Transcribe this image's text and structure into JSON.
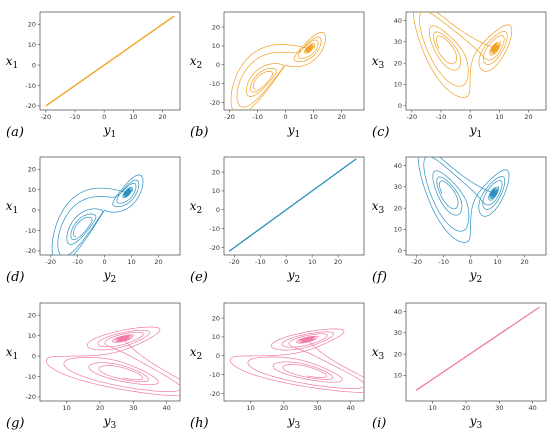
{
  "chart_data": [
    {
      "id": "a",
      "type": "line",
      "panel_label": "(a)",
      "xlabel": "y1",
      "ylabel": "x1",
      "color": "#f0a020",
      "xlim": [
        -22,
        26
      ],
      "ylim": [
        -22,
        26
      ],
      "xticks": [
        -20,
        -10,
        0,
        10,
        20
      ],
      "yticks": [
        -20,
        -10,
        0,
        10,
        20
      ],
      "pattern": "diagonal",
      "x": [
        -20,
        24
      ],
      "y": [
        -20,
        24
      ]
    },
    {
      "id": "b",
      "type": "line",
      "panel_label": "(b)",
      "xlabel": "y1",
      "ylabel": "x2",
      "color": "#f0a020",
      "xlim": [
        -22,
        28
      ],
      "ylim": [
        -24,
        28
      ],
      "xticks": [
        -20,
        -10,
        0,
        10,
        20
      ],
      "yticks": [
        -20,
        -10,
        0,
        10,
        20
      ],
      "pattern": "butterfly-diagonal"
    },
    {
      "id": "c",
      "type": "line",
      "panel_label": "(c)",
      "xlabel": "y1",
      "ylabel": "x3",
      "color": "#f0a020",
      "xlim": [
        -22,
        26
      ],
      "ylim": [
        -2,
        44
      ],
      "xticks": [
        -20,
        -10,
        0,
        10,
        20
      ],
      "yticks": [
        0,
        10,
        20,
        30,
        40
      ],
      "pattern": "butterfly"
    },
    {
      "id": "d",
      "type": "line",
      "panel_label": "(d)",
      "xlabel": "y2",
      "ylabel": "x1",
      "color": "#2a90c0",
      "xlim": [
        -24,
        28
      ],
      "ylim": [
        -22,
        26
      ],
      "xticks": [
        -20,
        -10,
        0,
        10,
        20
      ],
      "yticks": [
        -20,
        -10,
        0,
        10,
        20
      ],
      "pattern": "butterfly-diagonal"
    },
    {
      "id": "e",
      "type": "line",
      "panel_label": "(e)",
      "xlabel": "y2",
      "ylabel": "x2",
      "color": "#2a90c0",
      "xlim": [
        -24,
        30
      ],
      "ylim": [
        -24,
        28
      ],
      "xticks": [
        -20,
        -10,
        0,
        10,
        20
      ],
      "yticks": [
        -20,
        -10,
        0,
        10,
        20
      ],
      "pattern": "diagonal",
      "x": [
        -22,
        27
      ],
      "y": [
        -22,
        27
      ]
    },
    {
      "id": "f",
      "type": "line",
      "panel_label": "(f)",
      "xlabel": "y2",
      "ylabel": "x3",
      "color": "#2a90c0",
      "xlim": [
        -24,
        28
      ],
      "ylim": [
        -2,
        44
      ],
      "xticks": [
        -20,
        -10,
        0,
        10,
        20
      ],
      "yticks": [
        0,
        10,
        20,
        30,
        40
      ],
      "pattern": "butterfly"
    },
    {
      "id": "g",
      "type": "line",
      "panel_label": "(g)",
      "xlabel": "y3",
      "ylabel": "x1",
      "color": "#f07aa8",
      "xlim": [
        2,
        44
      ],
      "ylim": [
        -22,
        26
      ],
      "xticks": [
        10,
        20,
        30,
        40
      ],
      "yticks": [
        -20,
        -10,
        0,
        10,
        20
      ],
      "pattern": "butterfly-side"
    },
    {
      "id": "h",
      "type": "line",
      "panel_label": "(h)",
      "xlabel": "y3",
      "ylabel": "x2",
      "color": "#f07aa8",
      "xlim": [
        2,
        44
      ],
      "ylim": [
        -24,
        28
      ],
      "xticks": [
        10,
        20,
        30,
        40
      ],
      "yticks": [
        -20,
        -10,
        0,
        10,
        20
      ],
      "pattern": "butterfly-side"
    },
    {
      "id": "i",
      "type": "line",
      "panel_label": "(i)",
      "xlabel": "y3",
      "ylabel": "x3",
      "color": "#f07aa8",
      "xlim": [
        2,
        44
      ],
      "ylim": [
        -2,
        44
      ],
      "xticks": [
        10,
        20,
        30,
        40
      ],
      "yticks": [
        10,
        20,
        30,
        40
      ],
      "pattern": "diagonal",
      "x": [
        5,
        42
      ],
      "y": [
        3,
        42
      ]
    }
  ]
}
